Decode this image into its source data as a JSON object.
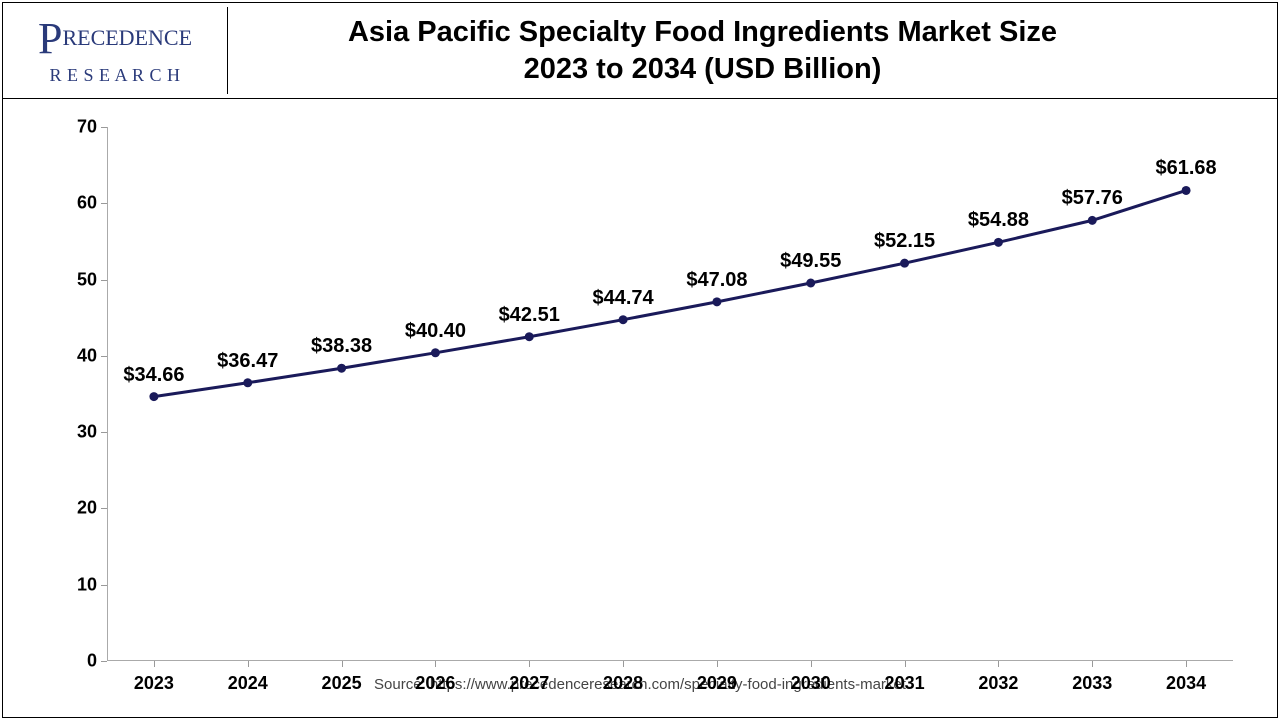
{
  "logo": {
    "text_top": "RECEDENCE",
    "text_bottom": "R E S E A R C H"
  },
  "title": {
    "line1": "Asia Pacific Specialty Food Ingredients Market Size",
    "line2": "2023 to 2034 (USD Billion)"
  },
  "chart": {
    "type": "line",
    "line_color": "#1a1a5a",
    "line_width": 3,
    "marker_color": "#1a1a5a",
    "marker_size": 4.5,
    "background_color": "#ffffff",
    "ylim": [
      0,
      70
    ],
    "yticks": [
      0,
      10,
      20,
      30,
      40,
      50,
      60,
      70
    ],
    "categories": [
      "2023",
      "2024",
      "2025",
      "2026",
      "2027",
      "2028",
      "2029",
      "2030",
      "2031",
      "2032",
      "2033",
      "2034"
    ],
    "values": [
      34.66,
      36.47,
      38.38,
      40.4,
      42.51,
      44.74,
      47.08,
      49.55,
      52.15,
      54.88,
      57.76,
      61.68
    ],
    "value_labels": [
      "$34.66",
      "$36.47",
      "$38.38",
      "$40.40",
      "$42.51",
      "$44.74",
      "$47.08",
      "$49.55",
      "$52.15",
      "$54.88",
      "$57.76",
      "$61.68"
    ],
    "label_fontsize": 20,
    "tick_fontsize": 18
  },
  "source": "Source: https://www.precedenceresearch.com/specialty-food-ingredients-market"
}
